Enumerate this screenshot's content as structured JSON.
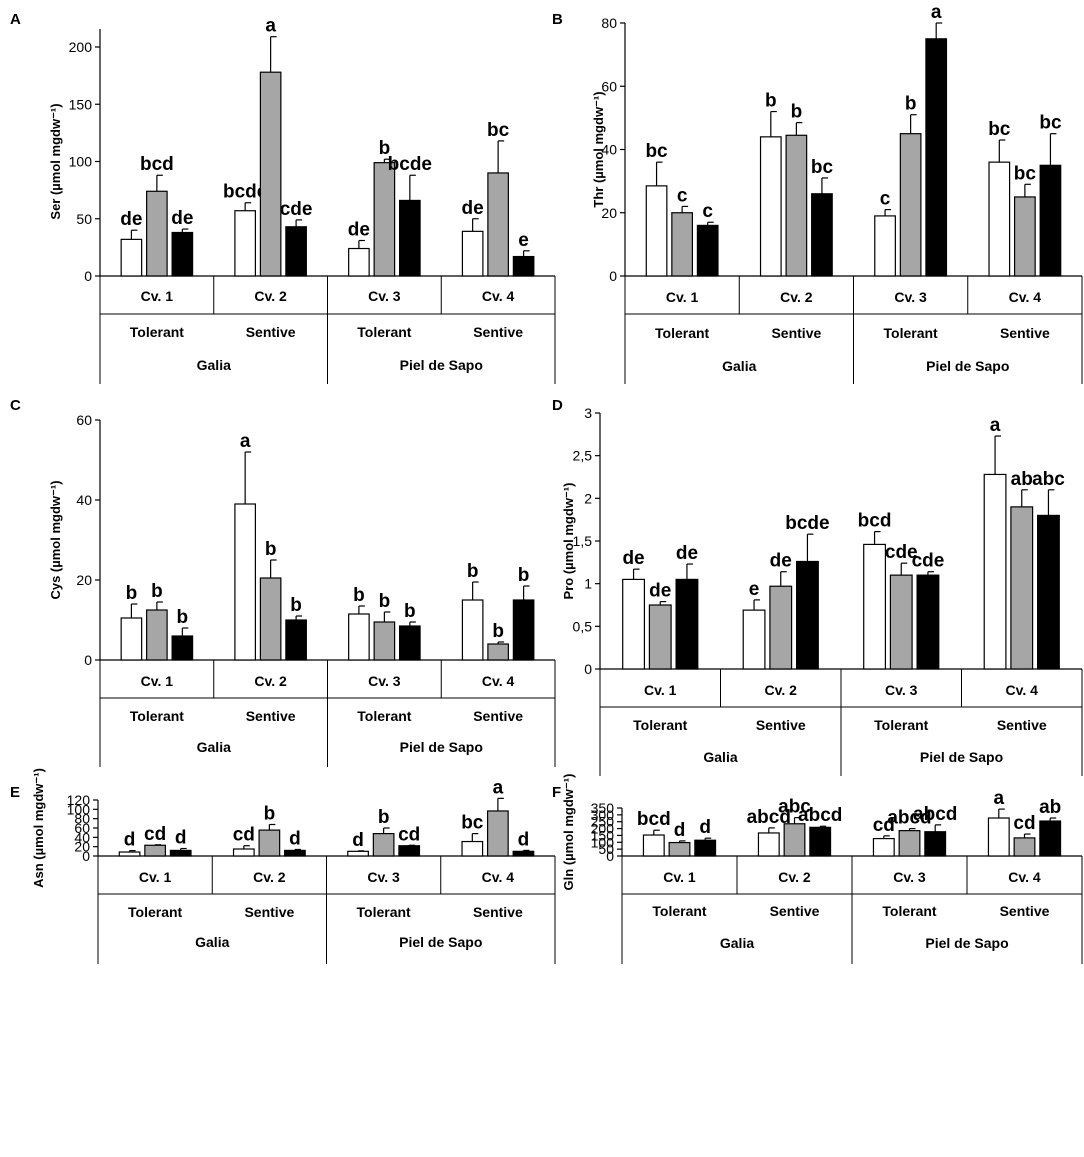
{
  "chart_data": [
    {
      "panel": "A",
      "type": "bar",
      "ylabel": "Ser (µmol mgdw⁻¹)",
      "ylim": [
        0,
        220
      ],
      "yticks": [
        0,
        50,
        100,
        150,
        200
      ],
      "ytick_labels": [
        "0",
        "50",
        "100",
        "150",
        "200"
      ],
      "categories": [
        "Cv. 1",
        "Cv. 2",
        "Cv. 3",
        "Cv. 4"
      ],
      "tolerance": [
        "Tolerant",
        "Sentive",
        "Tolerant",
        "Sentive"
      ],
      "groups": [
        "Galia",
        "Piel de Sapo"
      ],
      "series_colors": [
        "#ffffff",
        "#a6a6a6",
        "#000000"
      ],
      "series": [
        {
          "values": [
            32,
            57,
            24,
            39
          ],
          "errors": [
            8,
            7,
            7,
            11
          ],
          "labels": [
            "de",
            "bcde",
            "de",
            "de"
          ]
        },
        {
          "values": [
            74,
            178,
            99,
            90
          ],
          "errors": [
            14,
            31,
            3,
            28
          ],
          "labels": [
            "bcd",
            "a",
            "b",
            "bc"
          ]
        },
        {
          "values": [
            38,
            43,
            66,
            17
          ],
          "errors": [
            3,
            6,
            22,
            5
          ],
          "labels": [
            "de",
            "cde",
            "bcde",
            "e"
          ]
        }
      ]
    },
    {
      "panel": "B",
      "type": "bar",
      "ylabel": "Thr (µmol mgdw⁻¹)",
      "ylim": [
        0,
        80
      ],
      "yticks": [
        0,
        20,
        40,
        60,
        80
      ],
      "ytick_labels": [
        "0",
        "20",
        "40",
        "60",
        "80"
      ],
      "categories": [
        "Cv. 1",
        "Cv. 2",
        "Cv. 3",
        "Cv. 4"
      ],
      "tolerance": [
        "Tolerant",
        "Sentive",
        "Tolerant",
        "Sentive"
      ],
      "groups": [
        "Galia",
        "Piel de Sapo"
      ],
      "series_colors": [
        "#ffffff",
        "#a6a6a6",
        "#000000"
      ],
      "series": [
        {
          "values": [
            28.5,
            44,
            19,
            36
          ],
          "errors": [
            7.5,
            8,
            2,
            7
          ],
          "labels": [
            "bc",
            "b",
            "c",
            "bc"
          ]
        },
        {
          "values": [
            20,
            44.5,
            45,
            25
          ],
          "errors": [
            2,
            4,
            6,
            4
          ],
          "labels": [
            "c",
            "b",
            "b",
            "bc"
          ]
        },
        {
          "values": [
            16,
            26,
            75,
            35
          ],
          "errors": [
            1,
            5,
            5,
            10
          ],
          "labels": [
            "c",
            "bc",
            "a",
            "bc"
          ]
        }
      ]
    },
    {
      "panel": "C",
      "type": "bar",
      "ylabel": "Cys (µmol mgdw⁻¹)",
      "ylim": [
        0,
        60
      ],
      "yticks": [
        0,
        20,
        40,
        60
      ],
      "ytick_labels": [
        "0",
        "20",
        "40",
        "60"
      ],
      "categories": [
        "Cv. 1",
        "Cv. 2",
        "Cv. 3",
        "Cv. 4"
      ],
      "tolerance": [
        "Tolerant",
        "Sentive",
        "Tolerant",
        "Sentive"
      ],
      "groups": [
        "Galia",
        "Piel de Sapo"
      ],
      "series_colors": [
        "#ffffff",
        "#a6a6a6",
        "#000000"
      ],
      "series": [
        {
          "values": [
            10.5,
            39,
            11.5,
            15
          ],
          "errors": [
            3.5,
            13,
            2,
            4.5
          ],
          "labels": [
            "b",
            "a",
            "b",
            "b"
          ]
        },
        {
          "values": [
            12.5,
            20.5,
            9.5,
            4
          ],
          "errors": [
            2,
            4.5,
            2.5,
            0.5
          ],
          "labels": [
            "b",
            "b",
            "b",
            "b"
          ]
        },
        {
          "values": [
            6,
            10,
            8.5,
            15
          ],
          "errors": [
            2,
            1,
            1,
            3.5
          ],
          "labels": [
            "b",
            "b",
            "b",
            "b"
          ]
        }
      ]
    },
    {
      "panel": "D",
      "type": "bar",
      "ylabel": "Pro (µmol mgdw⁻¹)",
      "ylim": [
        0,
        3
      ],
      "yticks": [
        0,
        0.5,
        1,
        1.5,
        2,
        2.5,
        3
      ],
      "ytick_labels": [
        "0",
        "0,5",
        "1",
        "1,5",
        "2",
        "2,5",
        "3"
      ],
      "categories": [
        "Cv. 1",
        "Cv. 2",
        "Cv. 3",
        "Cv. 4"
      ],
      "tolerance": [
        "Tolerant",
        "Sentive",
        "Tolerant",
        "Sentive"
      ],
      "groups": [
        "Galia",
        "Piel de Sapo"
      ],
      "series_colors": [
        "#ffffff",
        "#a6a6a6",
        "#000000"
      ],
      "series": [
        {
          "values": [
            1.05,
            0.69,
            1.46,
            2.28
          ],
          "errors": [
            0.12,
            0.12,
            0.15,
            0.45
          ],
          "labels": [
            "de",
            "e",
            "bcd",
            "a"
          ]
        },
        {
          "values": [
            0.75,
            0.97,
            1.1,
            1.9
          ],
          "errors": [
            0.04,
            0.17,
            0.14,
            0.2
          ],
          "labels": [
            "de",
            "de",
            "cde",
            "ab"
          ]
        },
        {
          "values": [
            1.05,
            1.26,
            1.1,
            1.8
          ],
          "errors": [
            0.18,
            0.32,
            0.04,
            0.3
          ],
          "labels": [
            "de",
            "bcde",
            "cde",
            "abc"
          ]
        }
      ]
    },
    {
      "panel": "E",
      "type": "bar",
      "ylabel": "Asn (µmol mgdw⁻¹)",
      "ylim": [
        0,
        120
      ],
      "yticks": [
        0,
        20,
        40,
        60,
        80,
        100,
        120
      ],
      "ytick_labels": [
        "0",
        "20",
        "40",
        "60",
        "80",
        "100",
        "120"
      ],
      "categories": [
        "Cv. 1",
        "Cv. 2",
        "Cv. 3",
        "Cv. 4"
      ],
      "tolerance": [
        "Tolerant",
        "Sentive",
        "Tolerant",
        "Sentive"
      ],
      "groups": [
        "Galia",
        "Piel de Sapo"
      ],
      "series_colors": [
        "#ffffff",
        "#a6a6a6",
        "#000000"
      ],
      "series": [
        {
          "values": [
            8.5,
            15,
            10,
            31
          ],
          "errors": [
            3,
            7,
            1,
            17
          ],
          "labels": [
            "d",
            "cd",
            "d",
            "bc"
          ]
        },
        {
          "values": [
            23,
            55.5,
            48,
            96.5
          ],
          "errors": [
            1,
            12,
            12,
            27
          ],
          "labels": [
            "cd",
            "b",
            "b",
            "a"
          ]
        },
        {
          "values": [
            12,
            12,
            22,
            10
          ],
          "errors": [
            4,
            2,
            1,
            2
          ],
          "labels": [
            "d",
            "d",
            "cd",
            "d"
          ]
        }
      ]
    },
    {
      "panel": "F",
      "type": "bar",
      "ylabel": "Gln (µmol mgdw⁻¹)",
      "ylim": [
        0,
        350
      ],
      "yticks": [
        0,
        50,
        100,
        150,
        200,
        250,
        300,
        350
      ],
      "ytick_labels": [
        "0",
        "50",
        "100",
        "150",
        "200",
        "250",
        "300",
        "350"
      ],
      "categories": [
        "Cv. 1",
        "Cv. 2",
        "Cv. 3",
        "Cv. 4"
      ],
      "tolerance": [
        "Tolerant",
        "Sentive",
        "Tolerant",
        "Sentive"
      ],
      "groups": [
        "Galia",
        "Piel de Sapo"
      ],
      "series_colors": [
        "#ffffff",
        "#a6a6a6",
        "#000000"
      ],
      "series": [
        {
          "values": [
            153,
            168,
            127,
            277
          ],
          "errors": [
            35,
            37,
            20,
            65
          ],
          "labels": [
            "bcd",
            "abcd",
            "cd",
            "a"
          ]
        },
        {
          "values": [
            98,
            235,
            185,
            132
          ],
          "errors": [
            12,
            45,
            15,
            28
          ],
          "labels": [
            "d",
            "abc",
            "abcd",
            "cd"
          ]
        },
        {
          "values": [
            115,
            209,
            177,
            255
          ],
          "errors": [
            15,
            8,
            50,
            22
          ],
          "labels": [
            "d",
            "abcd",
            "abcd",
            "ab"
          ]
        }
      ]
    }
  ]
}
